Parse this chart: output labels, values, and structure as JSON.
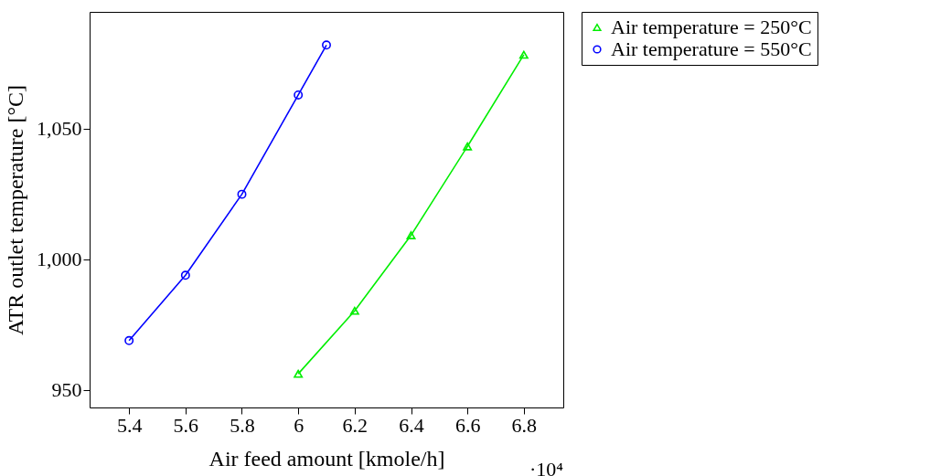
{
  "chart_data": {
    "type": "line",
    "xlabel": "Air feed amount [kmole/h]",
    "ylabel": "ATR outlet temperature [°C]",
    "xlim": [
      5.26,
      6.94
    ],
    "ylim": [
      943.3,
      1094.7
    ],
    "xticks": [
      5.4,
      5.6,
      5.8,
      6,
      6.2,
      6.4,
      6.6,
      6.8
    ],
    "yticks": [
      950,
      {
        "value": 1000,
        "label": "1,000"
      },
      {
        "value": 1050,
        "label": "1,050"
      }
    ],
    "annotations": [
      "·10⁴"
    ],
    "grid": false,
    "legend": "right",
    "line_style": "solid",
    "series": [
      {
        "name": "Air temperature = 250°C",
        "color": "#00ee00",
        "marker": "triangle",
        "x": [
          6,
          6.2,
          6.4,
          6.6,
          6.8
        ],
        "values": [
          956.2,
          980.3,
          1009.2,
          1043.2,
          1078.3
        ]
      },
      {
        "name": "Air temperature = 550°C",
        "color": "#0000ff",
        "marker": "circle",
        "x": [
          5.4,
          5.6,
          5.8,
          6,
          6.1
        ],
        "values": [
          968.9,
          993.9,
          1024.9,
          1062.9,
          1082
        ]
      }
    ]
  }
}
